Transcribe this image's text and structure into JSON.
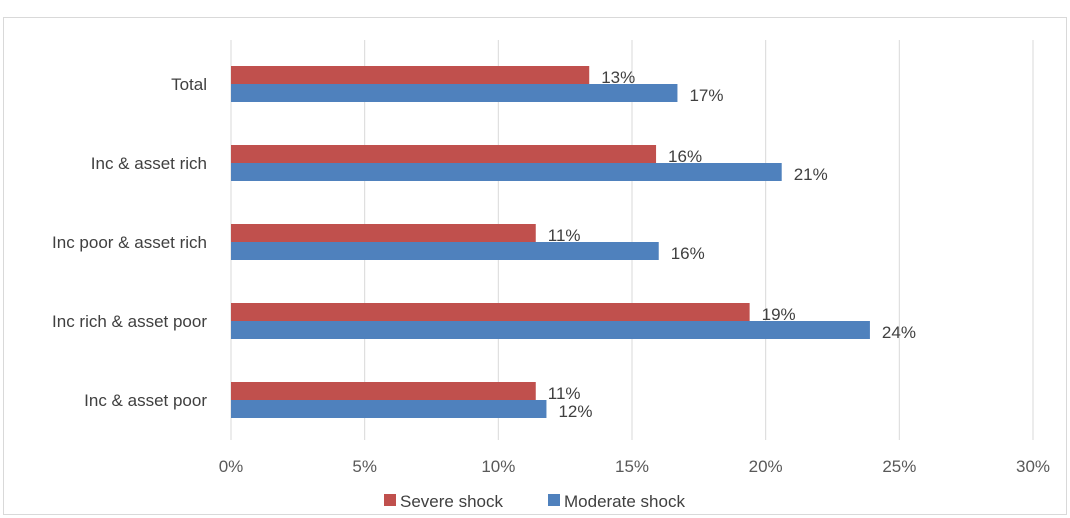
{
  "chart_data": {
    "type": "bar",
    "orientation": "horizontal",
    "categories": [
      "Total",
      "Inc & asset rich",
      "Inc poor & asset rich",
      "Inc rich & asset poor",
      "Inc & asset poor"
    ],
    "series": [
      {
        "name": "Severe shock",
        "color": "#c0504d",
        "values": [
          13.4,
          15.9,
          11.4,
          19.4,
          11.4
        ],
        "labels": [
          "13%",
          "16%",
          "11%",
          "19%",
          "11%"
        ]
      },
      {
        "name": "Moderate shock",
        "color": "#4f81bd",
        "values": [
          16.7,
          20.6,
          16.0,
          23.9,
          11.8
        ],
        "labels": [
          "17%",
          "21%",
          "16%",
          "24%",
          "12%"
        ]
      }
    ],
    "x_ticks": [
      "0%",
      "5%",
      "10%",
      "15%",
      "20%",
      "25%",
      "30%"
    ],
    "xlim": [
      0,
      30
    ],
    "grid": "vertical",
    "legend_position": "bottom",
    "gridline_color": "#d9d9d9"
  }
}
